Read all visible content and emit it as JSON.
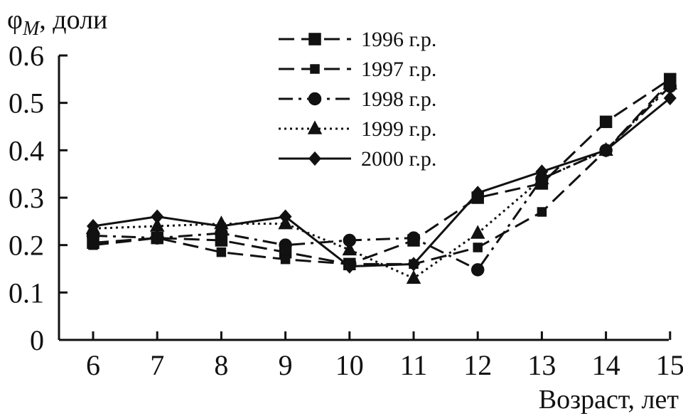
{
  "chart_data": {
    "type": "line",
    "ylabel_main": "φ",
    "ylabel_sub": "M",
    "ylabel_rest": ", доли",
    "xlabel": "Возраст, лет",
    "x": [
      6,
      7,
      8,
      9,
      10,
      11,
      12,
      13,
      14,
      15
    ],
    "x_ticks": [
      "6",
      "7",
      "8",
      "9",
      "10",
      "11",
      "12",
      "13",
      "14",
      "15"
    ],
    "y_ticks": [
      "0",
      "0.1",
      "0.2",
      "0.3",
      "0.4",
      "0.5",
      "0.6"
    ],
    "xlim": [
      5.5,
      15
    ],
    "ylim": [
      0,
      0.6
    ],
    "grid": false,
    "legend_position": "top-center",
    "series": [
      {
        "name": "1996 г.р.",
        "marker": "square",
        "dash": "long-dash",
        "values": [
          0.205,
          0.215,
          0.21,
          0.185,
          0.16,
          0.21,
          0.3,
          0.33,
          0.46,
          0.55
        ]
      },
      {
        "name": "1997 г.р.",
        "marker": "small-square",
        "dash": "long-dash",
        "values": [
          0.2,
          0.215,
          0.185,
          0.17,
          0.16,
          0.16,
          0.195,
          0.27,
          0.4,
          0.545
        ]
      },
      {
        "name": "1998 г.р.",
        "marker": "circle",
        "dash": "dash-dot",
        "values": [
          0.22,
          0.215,
          0.225,
          0.2,
          0.21,
          0.215,
          0.148,
          0.34,
          0.4,
          0.535
        ]
      },
      {
        "name": "1999 г.р.",
        "marker": "triangle",
        "dash": "dotted",
        "values": [
          0.235,
          0.24,
          0.245,
          0.245,
          0.19,
          0.13,
          0.225,
          0.34,
          0.4,
          0.54
        ]
      },
      {
        "name": "2000 г.р.",
        "marker": "diamond",
        "dash": "solid",
        "values": [
          0.24,
          0.26,
          0.24,
          0.26,
          0.155,
          0.16,
          0.31,
          0.355,
          0.4,
          0.51
        ]
      }
    ]
  }
}
